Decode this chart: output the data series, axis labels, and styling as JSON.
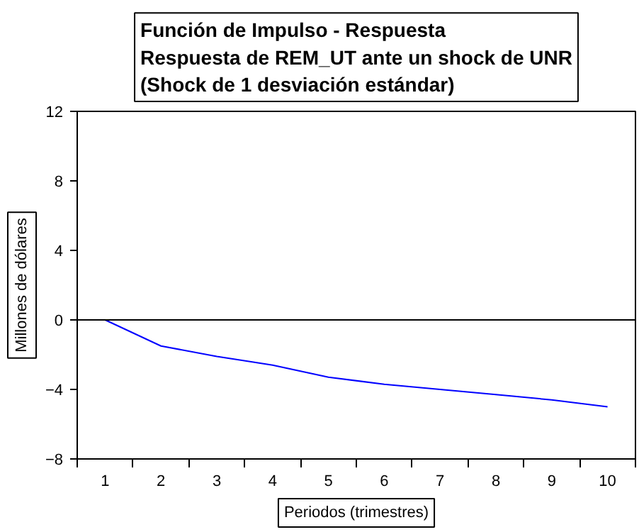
{
  "chart_data": {
    "type": "line",
    "title": "Función de Impulso - Respuesta",
    "subtitle": "Respuesta de REM_UT ante un shock de UNR\n(Shock de 1 desviación estándar)",
    "xlabel": "Periodos (trimestres)",
    "ylabel": "Millones de dólares",
    "x": [
      1,
      2,
      3,
      4,
      5,
      6,
      7,
      8,
      9,
      10
    ],
    "series": [
      {
        "color": "#0000ff",
        "values": [
          0,
          -1.5,
          -2.1,
          -2.6,
          -3.3,
          -3.7,
          -4.0,
          -4.3,
          -4.6,
          -5.0
        ]
      }
    ],
    "xlim": [
      0.5,
      10.5
    ],
    "xticks": [
      1,
      2,
      3,
      4,
      5,
      6,
      7,
      8,
      9,
      10
    ],
    "ylim": [
      -8,
      12
    ],
    "yticks": [
      -8,
      -4,
      0,
      4,
      8,
      12
    ],
    "ref_lines": [
      {
        "axis": "y",
        "value": 0,
        "color": "#000000"
      }
    ],
    "grid": false,
    "marker": "none",
    "line_style": "solid"
  }
}
